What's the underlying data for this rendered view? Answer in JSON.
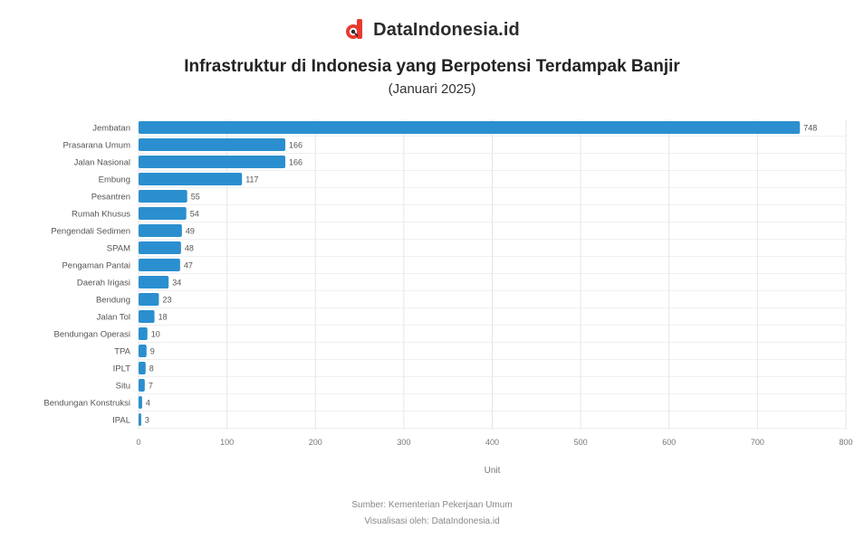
{
  "brand": {
    "name": "DataIndonesia.id",
    "logo_icon": "data-indonesia-logo-icon",
    "logo_color": "#e8392f"
  },
  "chart_data": {
    "type": "bar",
    "orientation": "horizontal",
    "title": "Infrastruktur di Indonesia yang Berpotensi Terdampak Banjir",
    "subtitle": "(Januari 2025)",
    "xlabel": "Unit",
    "ylabel": "",
    "xlim": [
      0,
      800
    ],
    "x_ticks": [
      0,
      100,
      200,
      300,
      400,
      500,
      600,
      700,
      800
    ],
    "grid": true,
    "bar_color": "#2b8fcf",
    "categories": [
      "Jembatan",
      "Prasarana Umum",
      "Jalan Nasional",
      "Embung",
      "Pesantren",
      "Rumah Khusus",
      "Pengendali Sedimen",
      "SPAM",
      "Pengaman Pantai",
      "Daerah Irigasi",
      "Bendung",
      "Jalan Tol",
      "Bendungan Operasi",
      "TPA",
      "IPLT",
      "Situ",
      "Bendungan Konstruksi",
      "IPAL"
    ],
    "values": [
      748,
      166,
      166,
      117,
      55,
      54,
      49,
      48,
      47,
      34,
      23,
      18,
      10,
      9,
      8,
      7,
      4,
      3
    ]
  },
  "source": {
    "line1": "Sumber: Kementerian Pekerjaan Umum",
    "line2": "Visualisasi oleh: DataIndonesia.id"
  }
}
